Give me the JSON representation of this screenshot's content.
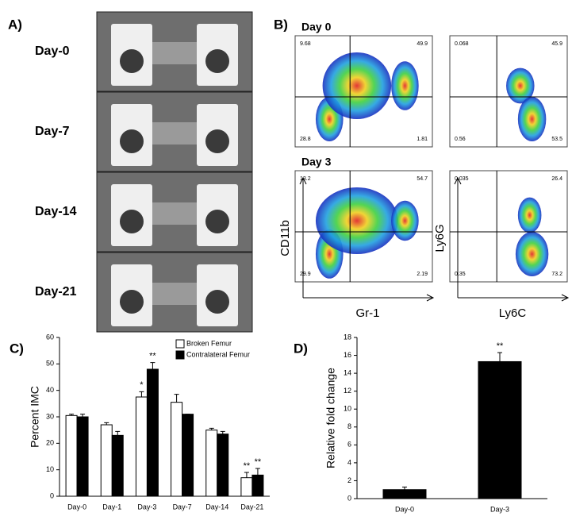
{
  "panel_a": {
    "label": "A)",
    "rows": [
      "Day-0",
      "Day-7",
      "Day-14",
      "Day-21"
    ]
  },
  "panel_b": {
    "label": "B)",
    "days": [
      "Day 0",
      "Day 3"
    ],
    "x_labels": [
      "Gr-1",
      "Ly6C"
    ],
    "y_labels": [
      "CD11b",
      "Ly6G"
    ],
    "plots": [
      {
        "quadrants": [
          "9.68",
          "49.9",
          "28.8",
          "1.81"
        ]
      },
      {
        "quadrants": [
          "0.068",
          "45.9",
          "0.56",
          "53.5"
        ]
      },
      {
        "quadrants": [
          "13.2",
          "54.7",
          "29.9",
          "2.19"
        ]
      },
      {
        "quadrants": [
          "0.035",
          "26.4",
          "0.35",
          "73.2"
        ]
      }
    ]
  },
  "chart_data": [
    {
      "type": "bar",
      "label": "C)",
      "y_label": "Percent IMC",
      "categories": [
        "Day-0",
        "Day-1",
        "Day-3",
        "Day-7",
        "Day-14",
        "Day-21"
      ],
      "series": [
        {
          "name": "Broken Femur",
          "color": "#ffffff",
          "values": [
            30.5,
            27,
            37.5,
            35.5,
            25,
            7
          ],
          "errors": [
            0.5,
            0.8,
            2,
            3,
            0.7,
            2
          ],
          "annotations": [
            null,
            null,
            "*",
            null,
            null,
            "**"
          ]
        },
        {
          "name": "Contralateral Femur",
          "color": "#000000",
          "values": [
            30,
            23,
            48,
            31,
            23.5,
            8
          ],
          "errors": [
            1,
            1.5,
            2.5,
            0,
            1,
            2.5
          ],
          "annotations": [
            null,
            null,
            "**",
            null,
            null,
            "**"
          ]
        }
      ],
      "ylim": [
        0,
        60
      ],
      "yticks": [
        0,
        10,
        20,
        30,
        40,
        50,
        60
      ]
    },
    {
      "type": "bar",
      "label": "D)",
      "y_label": "Relative fold change",
      "categories": [
        "Day-0",
        "Day-3"
      ],
      "values": [
        1,
        15.3
      ],
      "errors": [
        0.3,
        1
      ],
      "annotations": [
        null,
        "**"
      ],
      "color": "#000000",
      "ylim": [
        0,
        18
      ],
      "yticks": [
        0,
        2,
        4,
        6,
        8,
        10,
        12,
        14,
        16,
        18
      ]
    }
  ]
}
